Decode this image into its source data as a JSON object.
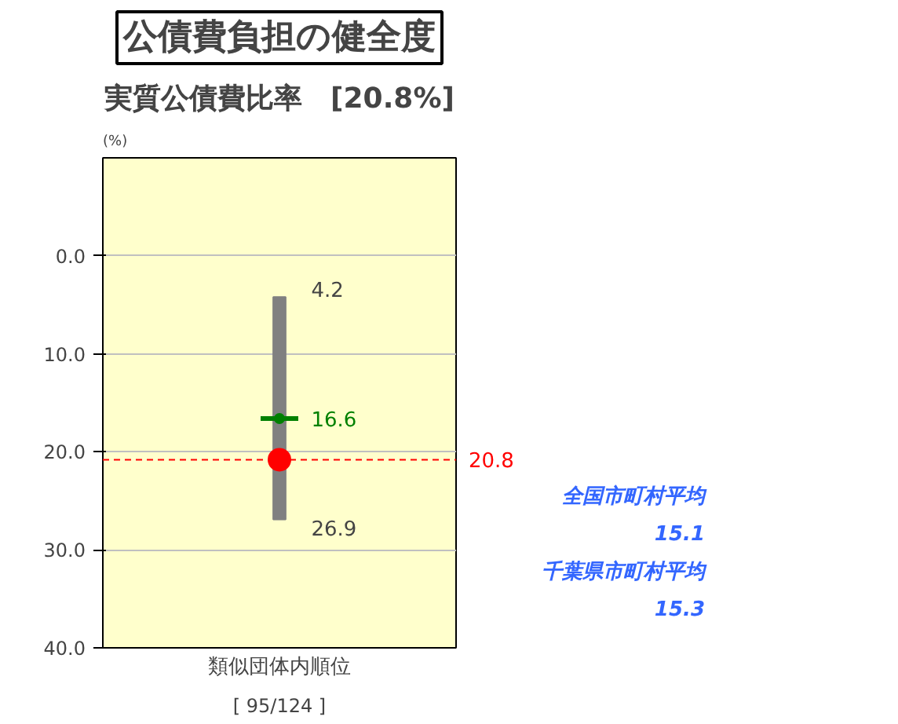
{
  "chart_data": {
    "type": "bar",
    "title": "公債費負担の健全度",
    "subtitle": "実質公債費比率　[20.8%]",
    "ylabel": "(%)",
    "xlabel": "類似団体内順位",
    "categories": [
      null
    ],
    "series": [
      {
        "color": "#808080",
        "base": [
          4.2
        ],
        "values": [
          22.7
        ]
      },
      {
        "type": "scatter",
        "color": "#008000",
        "values": [
          16.6
        ],
        "value_labels": [
          "16.6"
        ]
      },
      {
        "type": "scatter",
        "marker": "circle",
        "color": "#ff0000",
        "values": [
          20.8
        ]
      }
    ],
    "ylim": [
      40,
      -10
    ],
    "yticks": [
      {
        "value": 0,
        "label": "0.0"
      },
      {
        "value": 10,
        "label": "10.0"
      },
      {
        "value": 20,
        "label": "20.0"
      },
      {
        "value": 30,
        "label": "30.0"
      },
      {
        "value": 40,
        "label": "40.0"
      }
    ],
    "grid": "y",
    "ref_lines": [
      {
        "axis": "y",
        "value": 20.8,
        "label": "20.8",
        "color": "#ff0000",
        "line_style": "dashed"
      }
    ],
    "annotations": [
      "4.2",
      "26.9",
      "[ 95/124 ]",
      "全国市町村平均",
      "15.1",
      "千葉県市町村平均",
      "15.3"
    ]
  }
}
